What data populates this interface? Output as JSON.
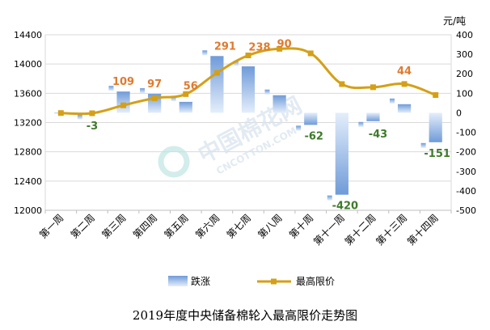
{
  "chart_data": {
    "type": "bar+line",
    "title": "2019年度中央储备棉轮入最高限价走势图",
    "unit_right": "元/吨",
    "categories": [
      "第一周",
      "第二周",
      "第三周",
      "第四周",
      "第五周",
      "第六周",
      "第七周",
      "第八周",
      "第十周",
      "第十一周",
      "第十二周",
      "第十三周",
      "第十四周"
    ],
    "series": [
      {
        "name": "跌涨",
        "type": "bar",
        "axis": "right",
        "values": [
          0,
          -3,
          109,
          97,
          56,
          291,
          238,
          90,
          -62,
          -420,
          -43,
          44,
          -151
        ],
        "labels": [
          "",
          "-3",
          "109",
          "97",
          "56",
          "291",
          "238",
          "90",
          "-62",
          "-420",
          "-43",
          "44",
          "-151"
        ]
      },
      {
        "name": "最高限价",
        "type": "line",
        "axis": "left",
        "values": [
          13330,
          13327,
          13436,
          13533,
          13589,
          13880,
          14118,
          14208,
          14146,
          13726,
          13683,
          13727,
          13576
        ]
      }
    ],
    "y_left": {
      "min": 12000,
      "max": 14400,
      "ticks": [
        "12000",
        "12400",
        "12800",
        "13200",
        "13600",
        "14000",
        "14400"
      ]
    },
    "y_right": {
      "min": -500,
      "max": 400,
      "ticks": [
        "-500",
        "-400",
        "-300",
        "-200",
        "-100",
        "0",
        "100",
        "200",
        "300",
        "400"
      ]
    },
    "grid": true,
    "legend_position": "bottom",
    "colors": {
      "bar": "#a9c8ef",
      "bar_dark": "#6f9bd8",
      "line": "#d4a017",
      "pos_label": "#e07a2e",
      "neg_label": "#3e7a2a"
    }
  },
  "watermark": {
    "text": "中国棉花网",
    "subtext": "CNCOTTON.COM"
  }
}
